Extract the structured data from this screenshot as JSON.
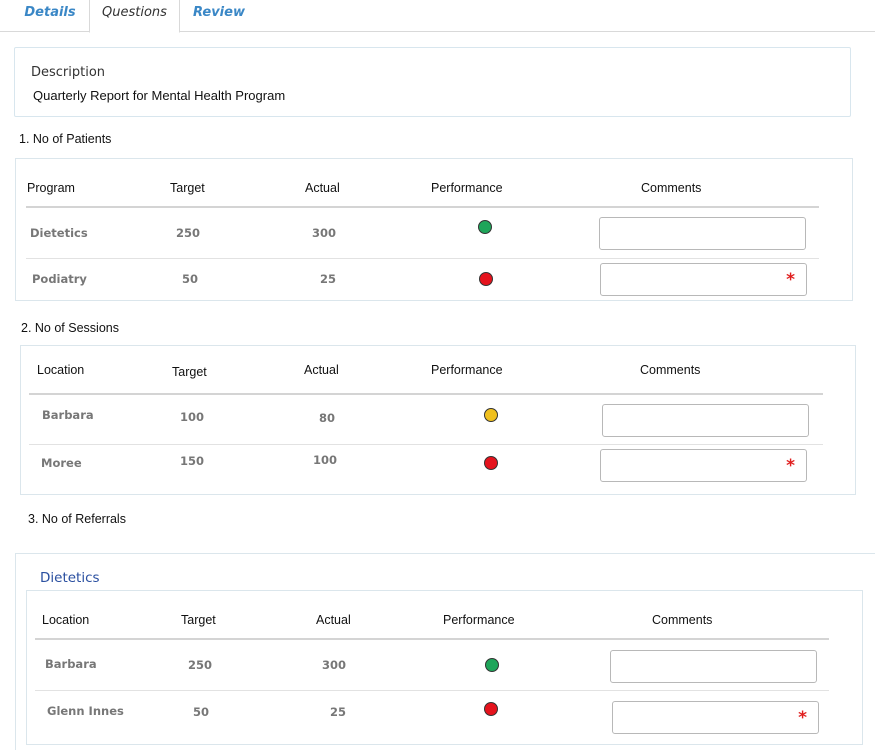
{
  "tabs": [
    {
      "label": "Details"
    },
    {
      "label": "Questions"
    },
    {
      "label": "Review"
    }
  ],
  "description": {
    "label": "Description",
    "value": "Quarterly Report for Mental Health Program"
  },
  "colors": {
    "green": "#1fa55a",
    "red": "#e5131d",
    "amber": "#f0c01e",
    "link": "#3a87c6",
    "required": "#e02020"
  },
  "questions": [
    {
      "title": "1. No of Patients",
      "headers": [
        "Program",
        "Target",
        "Actual",
        "Performance",
        "Comments"
      ],
      "rows": [
        {
          "name": "Dietetics",
          "target": "250",
          "actual": "300",
          "performance": "green",
          "comment": "",
          "required": false
        },
        {
          "name": "Podiatry",
          "target": "50",
          "actual": "25",
          "performance": "red",
          "comment": "",
          "required": true
        }
      ]
    },
    {
      "title": "2. No of Sessions",
      "headers": [
        "Location",
        "Target",
        "Actual",
        "Performance",
        "Comments"
      ],
      "rows": [
        {
          "name": "Barbara",
          "target": "100",
          "actual": "80",
          "performance": "amber",
          "comment": "",
          "required": false
        },
        {
          "name": "Moree",
          "target": "150",
          "actual": "100",
          "performance": "red",
          "comment": "",
          "required": true
        }
      ]
    },
    {
      "title": "3. No of Referrals",
      "subheading": "Dietetics",
      "headers": [
        "Location",
        "Target",
        "Actual",
        "Performance",
        "Comments"
      ],
      "rows": [
        {
          "name": "Barbara",
          "target": "250",
          "actual": "300",
          "performance": "green",
          "comment": "",
          "required": false
        },
        {
          "name": "Glenn Innes",
          "target": "50",
          "actual": "25",
          "performance": "red",
          "comment": "",
          "required": true
        }
      ]
    }
  ],
  "required_marker": "*"
}
